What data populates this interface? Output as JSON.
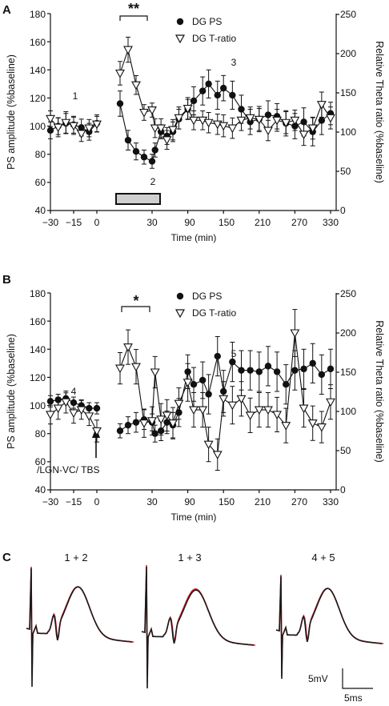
{
  "panels": [
    {
      "letter": "A",
      "ylabel_left": "PS amplitude (%baseline)",
      "ylabel_right": "Relative Theta ratio (%baseline)",
      "xlabel": "Time (min)",
      "left_ticks": [
        "40",
        "60",
        "80",
        "100",
        "120",
        "140",
        "160",
        "180"
      ],
      "right_ticks": [
        "0",
        "50",
        "100",
        "150",
        "200",
        "250"
      ],
      "x_ticks": [
        "−30",
        "−15",
        "0",
        "30",
        "90",
        "150",
        "210",
        "270",
        "330"
      ],
      "legend": [
        "DG  PS",
        "DG  T-ratio"
      ],
      "significance": "**",
      "annotations": [
        "1",
        "2",
        "3"
      ],
      "stim_bar": true
    },
    {
      "letter": "B",
      "ylabel_left": "PS amplitude (%baseline)",
      "ylabel_right": "Relative Theta ratio (%baseline)",
      "xlabel": "Time (min)",
      "left_ticks": [
        "40",
        "60",
        "80",
        "100",
        "120",
        "140",
        "160",
        "180"
      ],
      "right_ticks": [
        "0",
        "50",
        "100",
        "150",
        "200",
        "250"
      ],
      "x_ticks": [
        "−30",
        "−15",
        "0",
        "30",
        "90",
        "150",
        "210",
        "270",
        "330"
      ],
      "legend": [
        "DG  PS",
        "DG  T-ratio"
      ],
      "significance": "*",
      "annotations": [
        "4",
        "5"
      ],
      "stim_label": "/LGN-VC/  TBS"
    }
  ],
  "panel_c": {
    "letter": "C",
    "trace_labels": [
      "1 + 2",
      "1 + 3",
      "4 + 5"
    ],
    "scale_v": "5mV",
    "scale_t": "5ms",
    "colors": {
      "before": "#1a1a1a",
      "after": "#e8202a"
    }
  },
  "chart_data": [
    {
      "type": "line",
      "title": "",
      "xlabel": "Time (min)",
      "ylabel": "PS amplitude (%baseline)",
      "ylabel_right": "Relative Theta ratio (%baseline)",
      "ylim": [
        40,
        180
      ],
      "ylim_right": [
        0,
        250
      ],
      "grid": false,
      "legend_position": "top-center",
      "series": [
        {
          "name": "DG  PS",
          "axis": "left",
          "marker": "filled-circle",
          "x": [
            -30,
            -25,
            -20,
            -15,
            -10,
            -5,
            0,
            10,
            15,
            20,
            25,
            30,
            35,
            45,
            55,
            65,
            75,
            90,
            100,
            115,
            125,
            140,
            150,
            165,
            180,
            195,
            210,
            225,
            240,
            255,
            270,
            285,
            300,
            315,
            330
          ],
          "y": [
            97,
            100,
            102,
            101,
            99,
            96,
            102,
            116,
            90,
            82,
            78,
            75,
            83,
            96,
            93,
            96,
            105,
            112,
            118,
            125,
            130,
            122,
            127,
            122,
            112,
            103,
            105,
            108,
            107,
            102,
            100,
            103,
            96,
            104,
            109
          ],
          "err": [
            6,
            6,
            7,
            6,
            6,
            6,
            6,
            9,
            7,
            6,
            5,
            5,
            5,
            5,
            6,
            7,
            7,
            7,
            10,
            10,
            10,
            10,
            9,
            10,
            10,
            9,
            9,
            10,
            9,
            9,
            9,
            10,
            10,
            10,
            8
          ]
        },
        {
          "name": "DG  T-ratio",
          "axis": "right",
          "marker": "open-triangle",
          "x": [
            -30,
            -25,
            -20,
            -15,
            -10,
            -5,
            0,
            10,
            15,
            20,
            25,
            30,
            35,
            45,
            55,
            65,
            75,
            90,
            100,
            115,
            125,
            140,
            150,
            165,
            180,
            195,
            210,
            225,
            240,
            255,
            270,
            285,
            300,
            315,
            330
          ],
          "y": [
            117,
            106,
            112,
            108,
            98,
            105,
            110,
            175,
            205,
            160,
            125,
            128,
            105,
            105,
            90,
            103,
            118,
            130,
            115,
            115,
            112,
            110,
            108,
            105,
            115,
            118,
            116,
            102,
            115,
            112,
            115,
            97,
            105,
            135,
            118
          ],
          "err": [
            10,
            12,
            14,
            11,
            10,
            11,
            10,
            15,
            16,
            12,
            10,
            9,
            12,
            12,
            12,
            13,
            14,
            14,
            12,
            12,
            13,
            13,
            14,
            13,
            13,
            14,
            14,
            13,
            14,
            14,
            13,
            14,
            14,
            16,
            14
          ]
        }
      ]
    },
    {
      "type": "line",
      "title": "",
      "xlabel": "Time (min)",
      "ylabel": "PS amplitude (%baseline)",
      "ylabel_right": "Relative Theta ratio (%baseline)",
      "ylim": [
        40,
        180
      ],
      "ylim_right": [
        0,
        250
      ],
      "grid": false,
      "legend_position": "top-center",
      "series": [
        {
          "name": "DG  PS",
          "axis": "left",
          "marker": "filled-circle",
          "x": [
            -30,
            -25,
            -20,
            -15,
            -10,
            -5,
            0,
            10,
            15,
            20,
            25,
            30,
            35,
            45,
            55,
            65,
            75,
            90,
            100,
            115,
            125,
            140,
            150,
            165,
            180,
            195,
            210,
            225,
            240,
            255,
            270,
            285,
            300,
            315,
            330
          ],
          "y": [
            103,
            104,
            105,
            102,
            100,
            98,
            98,
            82,
            86,
            88,
            90,
            88,
            80,
            82,
            88,
            86,
            95,
            124,
            115,
            118,
            108,
            135,
            110,
            131,
            125,
            125,
            124,
            128,
            124,
            115,
            125,
            126,
            130,
            122,
            126
          ],
          "err": [
            4,
            4,
            4,
            4,
            4,
            4,
            4,
            5,
            6,
            7,
            7,
            6,
            6,
            7,
            8,
            9,
            10,
            12,
            12,
            13,
            14,
            14,
            15,
            14,
            14,
            14,
            14,
            14,
            14,
            14,
            14,
            14,
            14,
            14,
            14
          ]
        },
        {
          "name": "DG  T-ratio",
          "axis": "right",
          "marker": "open-triangle",
          "x": [
            -30,
            -25,
            -20,
            -15,
            -10,
            -5,
            0,
            10,
            15,
            20,
            25,
            30,
            35,
            45,
            55,
            65,
            75,
            90,
            100,
            115,
            125,
            140,
            150,
            165,
            180,
            195,
            210,
            225,
            240,
            255,
            270,
            285,
            300,
            315,
            330
          ],
          "y": [
            96,
            104,
            112,
            98,
            102,
            94,
            75,
            155,
            182,
            157,
            85,
            88,
            150,
            90,
            95,
            85,
            110,
            137,
            102,
            102,
            58,
            45,
            116,
            108,
            116,
            95,
            102,
            102,
            96,
            82,
            200,
            104,
            85,
            80,
            112
          ],
          "err": [
            12,
            14,
            14,
            13,
            12,
            12,
            14,
            20,
            22,
            22,
            18,
            18,
            20,
            20,
            20,
            20,
            20,
            24,
            22,
            22,
            22,
            20,
            22,
            24,
            22,
            22,
            22,
            22,
            22,
            22,
            30,
            24,
            22,
            20,
            22
          ]
        }
      ]
    }
  ]
}
